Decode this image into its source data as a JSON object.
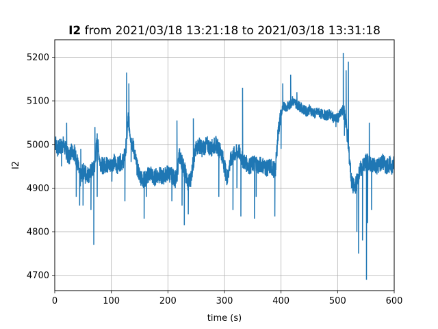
{
  "chart_data": {
    "type": "line",
    "title_bold": "I2",
    "title_rest": " from 2021/03/18 13:21:18 to 2021/03/18 13:31:18",
    "xlabel": "time (s)",
    "ylabel": "I2",
    "xlim": [
      0,
      600
    ],
    "ylim": [
      4665,
      5240
    ],
    "xticks": [
      0,
      100,
      200,
      300,
      400,
      500,
      600
    ],
    "yticks": [
      4700,
      4800,
      4900,
      5000,
      5100,
      5200
    ],
    "grid": true,
    "line_color": "#1f77b4",
    "series": [
      {
        "x": [
          0,
          5,
          10,
          15,
          20,
          25,
          30,
          35,
          40,
          45,
          50,
          55,
          60,
          65,
          70,
          75,
          80,
          85,
          90,
          95,
          100,
          105,
          110,
          115,
          120,
          125,
          130,
          135,
          140,
          145,
          150,
          155,
          160,
          165,
          170,
          175,
          180,
          185,
          190,
          195,
          200,
          205,
          210,
          215,
          220,
          225,
          230,
          235,
          240,
          245,
          250,
          255,
          260,
          265,
          270,
          275,
          280,
          285,
          290,
          295,
          300,
          305,
          310,
          315,
          320,
          325,
          330,
          335,
          340,
          345,
          350,
          355,
          360,
          365,
          370,
          375,
          380,
          385,
          390,
          395,
          400,
          405,
          410,
          415,
          420,
          425,
          430,
          435,
          440,
          445,
          450,
          455,
          460,
          465,
          470,
          475,
          480,
          485,
          490,
          495,
          500,
          505,
          510,
          515,
          520,
          525,
          530,
          535,
          540,
          545,
          550,
          555,
          560,
          565,
          570,
          575,
          580,
          585,
          590,
          595,
          600
        ],
        "y": [
          5010,
          4990,
          4995,
          5000,
          4985,
          4970,
          4990,
          4980,
          4960,
          4920,
          4940,
          4935,
          4930,
          4940,
          4945,
          5010,
          4960,
          4950,
          4955,
          4950,
          4955,
          4960,
          4950,
          4960,
          4960,
          4980,
          5060,
          5010,
          4990,
          4950,
          4930,
          4920,
          4920,
          4930,
          4935,
          4920,
          4930,
          4930,
          4925,
          4930,
          4935,
          4930,
          4925,
          4920,
          4975,
          4960,
          4940,
          4910,
          4920,
          4960,
          4990,
          5000,
          4990,
          4995,
          5000,
          4990,
          4995,
          5000,
          4990,
          4980,
          4950,
          4920,
          4960,
          4975,
          4980,
          4985,
          4970,
          4960,
          4955,
          4950,
          4955,
          4960,
          4950,
          4955,
          4950,
          4945,
          4950,
          4945,
          4940,
          5030,
          5070,
          5090,
          5085,
          5090,
          5100,
          5095,
          5090,
          5085,
          5080,
          5075,
          5080,
          5075,
          5070,
          5075,
          5070,
          5070,
          5065,
          5070,
          5065,
          5060,
          5060,
          5070,
          5080,
          5050,
          4980,
          4910,
          4900,
          4920,
          4940,
          4950,
          4960,
          4960,
          4950,
          4955,
          4950,
          4955,
          4960,
          4950,
          4955,
          4950,
          4955
        ],
        "spikes": [
          {
            "x": 12,
            "y": 4950
          },
          {
            "x": 21,
            "y": 5050
          },
          {
            "x": 35,
            "y": 5000
          },
          {
            "x": 38,
            "y": 4880
          },
          {
            "x": 44,
            "y": 4860
          },
          {
            "x": 46,
            "y": 4990
          },
          {
            "x": 50,
            "y": 4860
          },
          {
            "x": 54,
            "y": 4910
          },
          {
            "x": 64,
            "y": 4850
          },
          {
            "x": 69,
            "y": 4770
          },
          {
            "x": 71,
            "y": 5040
          },
          {
            "x": 75,
            "y": 4880
          },
          {
            "x": 93,
            "y": 4970
          },
          {
            "x": 101,
            "y": 4915
          },
          {
            "x": 124,
            "y": 4870
          },
          {
            "x": 127,
            "y": 5165
          },
          {
            "x": 131,
            "y": 5140
          },
          {
            "x": 135,
            "y": 4960
          },
          {
            "x": 158,
            "y": 4830
          },
          {
            "x": 162,
            "y": 4880
          },
          {
            "x": 207,
            "y": 4870
          },
          {
            "x": 213,
            "y": 4900
          },
          {
            "x": 216,
            "y": 5055
          },
          {
            "x": 225,
            "y": 4860
          },
          {
            "x": 229,
            "y": 4815
          },
          {
            "x": 236,
            "y": 4840
          },
          {
            "x": 245,
            "y": 5060
          },
          {
            "x": 258,
            "y": 5000
          },
          {
            "x": 290,
            "y": 4880
          },
          {
            "x": 315,
            "y": 4850
          },
          {
            "x": 322,
            "y": 4900
          },
          {
            "x": 329,
            "y": 4835
          },
          {
            "x": 332,
            "y": 5130
          },
          {
            "x": 336,
            "y": 4955
          },
          {
            "x": 353,
            "y": 4830
          },
          {
            "x": 356,
            "y": 4880
          },
          {
            "x": 389,
            "y": 4835
          },
          {
            "x": 395,
            "y": 5040
          },
          {
            "x": 400,
            "y": 4990
          },
          {
            "x": 403,
            "y": 5140
          },
          {
            "x": 417,
            "y": 5160
          },
          {
            "x": 428,
            "y": 5120
          },
          {
            "x": 497,
            "y": 5040
          },
          {
            "x": 510,
            "y": 5210
          },
          {
            "x": 512,
            "y": 5020
          },
          {
            "x": 515,
            "y": 5170
          },
          {
            "x": 519,
            "y": 5190
          },
          {
            "x": 522,
            "y": 4960
          },
          {
            "x": 534,
            "y": 4800
          },
          {
            "x": 537,
            "y": 4750
          },
          {
            "x": 544,
            "y": 4780
          },
          {
            "x": 551,
            "y": 4690
          },
          {
            "x": 553,
            "y": 4820
          },
          {
            "x": 556,
            "y": 5050
          },
          {
            "x": 560,
            "y": 4850
          }
        ]
      }
    ]
  }
}
